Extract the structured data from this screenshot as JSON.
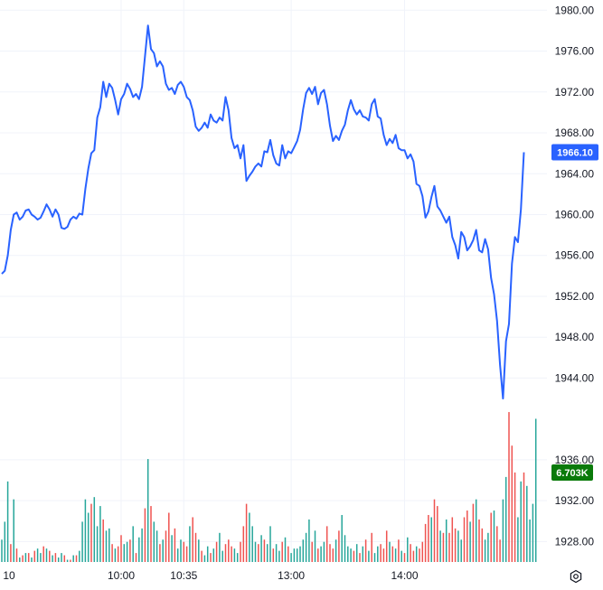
{
  "chart_data": {
    "type": "line",
    "price": {
      "ylim": [
        1926,
        1981
      ],
      "ticks": [
        1928,
        1932,
        1936,
        1944,
        1948,
        1952,
        1956,
        1960,
        1964,
        1968,
        1972,
        1976,
        1980
      ],
      "tick_labels": [
        "1928.00",
        "1932.00",
        "1936.00",
        "1944.00",
        "1948.00",
        "1952.00",
        "1956.00",
        "1960.00",
        "1964.00",
        "1968.00",
        "1972.00",
        "1976.00",
        "1980.00"
      ],
      "current_label": "1966.10",
      "values": [
        1954.2,
        1954.5,
        1956,
        1958.5,
        1960,
        1960.2,
        1959.5,
        1959.8,
        1960.4,
        1960.5,
        1960,
        1959.8,
        1959.5,
        1959.7,
        1960.3,
        1961,
        1960.5,
        1959.8,
        1960.5,
        1960,
        1958.7,
        1958.6,
        1958.8,
        1959.5,
        1959.8,
        1959.6,
        1960.1,
        1960,
        1962.5,
        1964.5,
        1966,
        1966.3,
        1969.5,
        1970.5,
        1973,
        1971.5,
        1972.8,
        1972.4,
        1971.2,
        1969.8,
        1971.3,
        1971.8,
        1972.8,
        1972.3,
        1971.5,
        1971.8,
        1971.3,
        1972.5,
        1975.5,
        1978.5,
        1976.2,
        1975.8,
        1974.5,
        1975,
        1974.5,
        1972.8,
        1972.2,
        1972.4,
        1971.8,
        1972.7,
        1973,
        1972.5,
        1971.5,
        1971.2,
        1970.2,
        1968.6,
        1968.2,
        1968.5,
        1969,
        1968.5,
        1969.8,
        1969.2,
        1969,
        1969.5,
        1969.2,
        1971.5,
        1970.2,
        1967.5,
        1966.5,
        1966.8,
        1965.5,
        1966.8,
        1963.3,
        1963.8,
        1964.2,
        1964.7,
        1965,
        1964.7,
        1966.2,
        1966.1,
        1967.3,
        1965.8,
        1965,
        1964.8,
        1966.8,
        1965.5,
        1966.2,
        1966,
        1966.6,
        1967.2,
        1968.3,
        1970.3,
        1971.9,
        1972.4,
        1971.8,
        1972.5,
        1970.8,
        1971.9,
        1972.2,
        1970.8,
        1968.7,
        1967.2,
        1967.7,
        1967.3,
        1968.2,
        1968.8,
        1970.2,
        1971.2,
        1970.3,
        1969.8,
        1970.2,
        1969.6,
        1969.5,
        1969.2,
        1970.8,
        1971.3,
        1969.6,
        1969.4,
        1967.8,
        1966.8,
        1967.4,
        1967,
        1967.8,
        1966.5,
        1966.3,
        1966.3,
        1965.5,
        1965.9,
        1965.2,
        1963,
        1962.8,
        1961.8,
        1959.7,
        1960.3,
        1961.7,
        1962.8,
        1960.8,
        1960.4,
        1959.8,
        1959.2,
        1959.8,
        1957.8,
        1957,
        1955.7,
        1958.3,
        1957.8,
        1956.5,
        1956.9,
        1957.5,
        1958.5,
        1956.5,
        1956.3,
        1957.6,
        1956.6,
        1953.8,
        1952.2,
        1949.6,
        1945.3,
        1942,
        1947.6,
        1949.3,
        1955.2,
        1957.8,
        1957.3,
        1960.5,
        1966.1
      ]
    },
    "volume": {
      "ylim": [
        0,
        6.703
      ],
      "current_label": "6.703K",
      "values": [
        1.0,
        1.8,
        3.6,
        0.8,
        2.8,
        0.6,
        0.2,
        0.3,
        0.4,
        0.4,
        0.2,
        0.5,
        0.6,
        0.4,
        0.7,
        0.6,
        0.5,
        0.3,
        0.4,
        0.2,
        0.4,
        0.3,
        0.1,
        0.1,
        0.3,
        0.3,
        0.5,
        1.8,
        2.8,
        2.2,
        2.6,
        2.9,
        1.6,
        2.5,
        1.9,
        1.4,
        1.5,
        0.8,
        0.6,
        0.7,
        1.2,
        0.8,
        0.9,
        1.0,
        1.6,
        0.4,
        1.1,
        1.5,
        2.4,
        4.6,
        2.5,
        1.8,
        1.4,
        0.8,
        1.0,
        1.4,
        2.2,
        1.2,
        1.5,
        0.6,
        1.0,
        0.9,
        0.7,
        1.6,
        2.0,
        1.3,
        1.0,
        0.5,
        0.3,
        0.7,
        0.4,
        0.6,
        0.9,
        1.3,
        0.5,
        0.8,
        1.0,
        0.7,
        0.6,
        0.4,
        0.9,
        1.6,
        2.6,
        2.2,
        1.6,
        0.9,
        0.8,
        1.2,
        1.0,
        0.8,
        1.6,
        0.6,
        0.8,
        0.5,
        0.9,
        1.1,
        0.7,
        0.4,
        0.6,
        0.6,
        0.7,
        1.0,
        1.3,
        1.9,
        0.9,
        1.4,
        0.6,
        0.7,
        0.9,
        1.6,
        0.8,
        0.6,
        1.0,
        1.4,
        2.1,
        1.2,
        0.7,
        0.6,
        0.5,
        0.8,
        0.4,
        0.7,
        1.0,
        0.5,
        1.3,
        0.4,
        0.7,
        0.8,
        0.6,
        1.4,
        0.9,
        0.7,
        0.6,
        1.0,
        0.5,
        0.4,
        1.1,
        0.8,
        0.5,
        0.7,
        0.6,
        0.9,
        1.7,
        2.1,
        2.0,
        2.8,
        2.5,
        1.4,
        1.3,
        1.9,
        1.3,
        2.0,
        1.5,
        1.4,
        1.0,
        2.0,
        2.3,
        1.8,
        2.6,
        2.8,
        1.9,
        1.5,
        1.0,
        1.3,
        2.2,
        2.3,
        1.6,
        1.0,
        2.8,
        3.8,
        6.7,
        5.2,
        4.0,
        2.0,
        3.6,
        4.0,
        3.4,
        1.9,
        2.6,
        6.4
      ],
      "up": [
        1,
        1,
        1,
        0,
        1,
        0,
        1,
        0,
        1,
        0,
        1,
        0,
        1,
        1,
        0,
        1,
        0,
        1,
        0,
        1,
        1,
        0,
        1,
        0,
        1,
        0,
        1,
        1,
        1,
        1,
        0,
        1,
        1,
        1,
        0,
        1,
        1,
        0,
        1,
        0,
        0,
        1,
        1,
        0,
        1,
        0,
        1,
        1,
        0,
        1,
        0,
        1,
        1,
        0,
        1,
        0,
        0,
        1,
        0,
        1,
        1,
        0,
        0,
        1,
        0,
        0,
        1,
        0,
        1,
        1,
        0,
        1,
        0,
        1,
        1,
        0,
        0,
        0,
        1,
        1,
        0,
        0,
        0,
        1,
        1,
        1,
        0,
        1,
        0,
        1,
        1,
        0,
        1,
        1,
        0,
        1,
        0,
        1,
        1,
        1,
        1,
        1,
        1,
        1,
        0,
        1,
        0,
        1,
        1,
        0,
        0,
        0,
        1,
        0,
        1,
        1,
        1,
        1,
        0,
        1,
        0,
        1,
        0,
        1,
        0,
        1,
        1,
        0,
        0,
        0,
        1,
        0,
        1,
        0,
        1,
        0,
        1,
        0,
        0,
        1,
        0,
        0,
        0,
        0,
        1,
        0,
        0,
        1,
        0,
        1,
        0,
        0,
        0,
        1,
        1,
        0,
        0,
        1,
        0,
        1,
        0,
        0,
        1,
        1,
        0,
        1,
        0,
        0,
        1,
        1,
        0,
        0,
        0,
        1,
        1,
        0,
        1,
        1,
        1,
        1
      ]
    },
    "x_tick_labels": [
      {
        "label": "10",
        "index": -1
      },
      {
        "label": "10:00",
        "index": 40
      },
      {
        "label": "10:35",
        "index": 61
      },
      {
        "label": "13:00",
        "index": 97
      },
      {
        "label": "14:00",
        "index": 135
      }
    ],
    "colors": {
      "line": "#2962ff",
      "up": "#26a69a",
      "down": "#ef5350",
      "volume_badge": "#0a7a0a",
      "price_badge": "#2962ff",
      "grid": "#f0f3fa"
    }
  }
}
